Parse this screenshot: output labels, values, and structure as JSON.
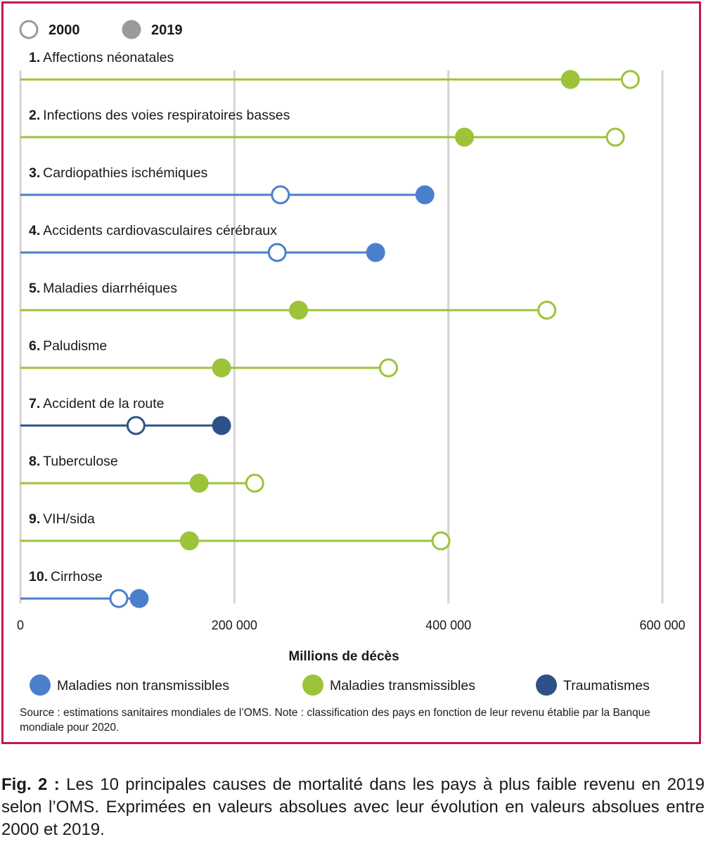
{
  "chart_data": {
    "type": "dumbbell",
    "xlabel": "Millions de décès",
    "xlim": [
      0,
      600000
    ],
    "xticks": [
      0,
      200000,
      400000,
      600000
    ],
    "xtick_labels": [
      "0",
      "200 000",
      "400 000",
      "600 000"
    ],
    "grid": true,
    "year_legend": [
      {
        "label": "2000",
        "style": "open"
      },
      {
        "label": "2019",
        "style": "filled"
      }
    ],
    "categories_legend": [
      {
        "label": "Maladies non transmissibles",
        "color": "#4a7fcc"
      },
      {
        "label": "Maladies transmissibles",
        "color": "#9cc33a"
      },
      {
        "label": "Traumatismes",
        "color": "#2e5187"
      }
    ],
    "rows": [
      {
        "num": "1.",
        "label": "Affections néonatales",
        "category": 1,
        "v2000": 570000,
        "v2019": 514000
      },
      {
        "num": "2.",
        "label": "Infections des voies respiratoires basses",
        "category": 1,
        "v2000": 556000,
        "v2019": 415000
      },
      {
        "num": "3.",
        "label": "Cardiopathies ischémiques",
        "category": 0,
        "v2000": 243000,
        "v2019": 378000
      },
      {
        "num": "4.",
        "label": "Accidents cardiovasculaires cérébraux",
        "category": 0,
        "v2000": 240000,
        "v2019": 332000
      },
      {
        "num": "5.",
        "label": "Maladies diarrhéiques",
        "category": 1,
        "v2000": 492000,
        "v2019": 260000
      },
      {
        "num": "6.",
        "label": "Paludisme",
        "category": 1,
        "v2000": 344000,
        "v2019": 188000
      },
      {
        "num": "7.",
        "label": "Accident de la route",
        "category": 2,
        "v2000": 108000,
        "v2019": 188000
      },
      {
        "num": "8.",
        "label": "Tuberculose",
        "category": 1,
        "v2000": 219000,
        "v2019": 167000
      },
      {
        "num": "9.",
        "label": "VIH/sida",
        "category": 1,
        "v2000": 393000,
        "v2019": 158000
      },
      {
        "num": "10.",
        "label": "Cirrhose",
        "category": 0,
        "v2000": 92000,
        "v2019": 111000
      }
    ]
  },
  "source_text": "Source : estimations sanitaires mondiales de l’OMS. Note : classification des pays en fonction de leur revenu établie par la Banque mondiale pour 2020.",
  "caption": {
    "label": "Fig. 2 :",
    "text": "Les 10 principales causes de mortalité dans les pays à plus faible revenu en 2019 selon l’OMS. Exprimées en valeurs absolues avec leur évolution en valeurs absolues entre 2000 et 2019."
  }
}
